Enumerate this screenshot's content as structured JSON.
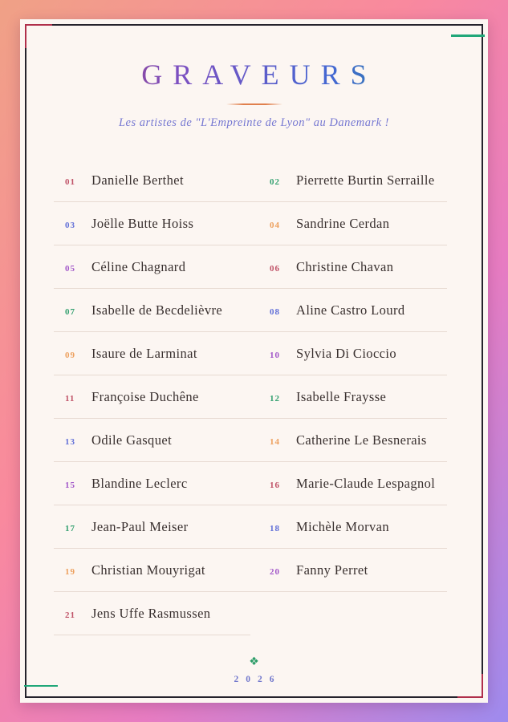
{
  "title": "GRAVEURS",
  "subtitle": "Les artistes de \"L'Empreinte de Lyon\" au Danemark !",
  "footer": {
    "ornament_icon": "❖",
    "year": "2026"
  },
  "colors": {
    "background_gradient": [
      "#f0a186",
      "#f9899e",
      "#e77cc2",
      "#9e8bee"
    ],
    "card_background": "#fcf6f2",
    "frame_border": "#25232c",
    "title_gradient": [
      "#a73a55",
      "#7d4fc0",
      "#4468d2",
      "#13967e"
    ],
    "title_underline": "#e0804d",
    "subtitle_text": "#7678d2",
    "separator": "#e7dad2",
    "name_text": "#39302f",
    "year_text": "#7177cc",
    "ornament_green": "#2b9c68",
    "accent_red": "#b02f4b",
    "accent_green": "#21a779",
    "number_palette": {
      "red": "#c05368",
      "green": "#35a171",
      "blue": "#6270d8",
      "orange": "#eda05e",
      "purple": "#a258c9"
    }
  },
  "artists": [
    {
      "num": "01",
      "name": "Danielle Berthet",
      "color": "red"
    },
    {
      "num": "02",
      "name": "Pierrette Burtin Serraille",
      "color": "green"
    },
    {
      "num": "03",
      "name": "Joëlle Butte Hoiss",
      "color": "blue"
    },
    {
      "num": "04",
      "name": "Sandrine Cerdan",
      "color": "orange"
    },
    {
      "num": "05",
      "name": "Céline Chagnard",
      "color": "purple"
    },
    {
      "num": "06",
      "name": "Christine Chavan",
      "color": "red"
    },
    {
      "num": "07",
      "name": "Isabelle de Becdelièvre",
      "color": "green"
    },
    {
      "num": "08",
      "name": "Aline Castro Lourd",
      "color": "blue"
    },
    {
      "num": "09",
      "name": "Isaure de Larminat",
      "color": "orange"
    },
    {
      "num": "10",
      "name": "Sylvia Di Cioccio",
      "color": "purple"
    },
    {
      "num": "11",
      "name": "Françoise Duchêne",
      "color": "red"
    },
    {
      "num": "12",
      "name": "Isabelle Fraysse",
      "color": "green"
    },
    {
      "num": "13",
      "name": "Odile Gasquet",
      "color": "blue"
    },
    {
      "num": "14",
      "name": "Catherine Le Besnerais",
      "color": "orange"
    },
    {
      "num": "15",
      "name": "Blandine Leclerc",
      "color": "purple"
    },
    {
      "num": "16",
      "name": "Marie-Claude Lespagnol",
      "color": "red"
    },
    {
      "num": "17",
      "name": "Jean-Paul Meiser",
      "color": "green"
    },
    {
      "num": "18",
      "name": "Michèle Morvan",
      "color": "blue"
    },
    {
      "num": "19",
      "name": "Christian Mouyrigat",
      "color": "orange"
    },
    {
      "num": "20",
      "name": "Fanny Perret",
      "color": "purple"
    },
    {
      "num": "21",
      "name": "Jens Uffe Rasmussen",
      "color": "red"
    }
  ]
}
